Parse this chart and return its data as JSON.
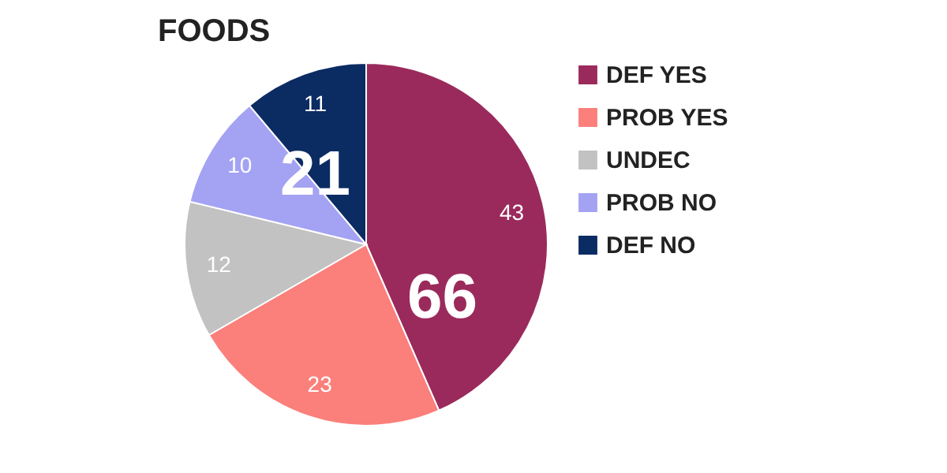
{
  "chart_data": {
    "type": "pie",
    "title": "FOODS",
    "categories": [
      "DEF YES",
      "PROB YES",
      "UNDEC",
      "PROB NO",
      "DEF NO"
    ],
    "values": [
      43,
      23,
      12,
      10,
      11
    ],
    "colors": [
      "#9b2a5c",
      "#fb7f7a",
      "#c2c2c2",
      "#a4a2f2",
      "#0b2b63"
    ],
    "data_labels": true,
    "legend": "right",
    "annotations": [
      "66",
      "21"
    ]
  }
}
